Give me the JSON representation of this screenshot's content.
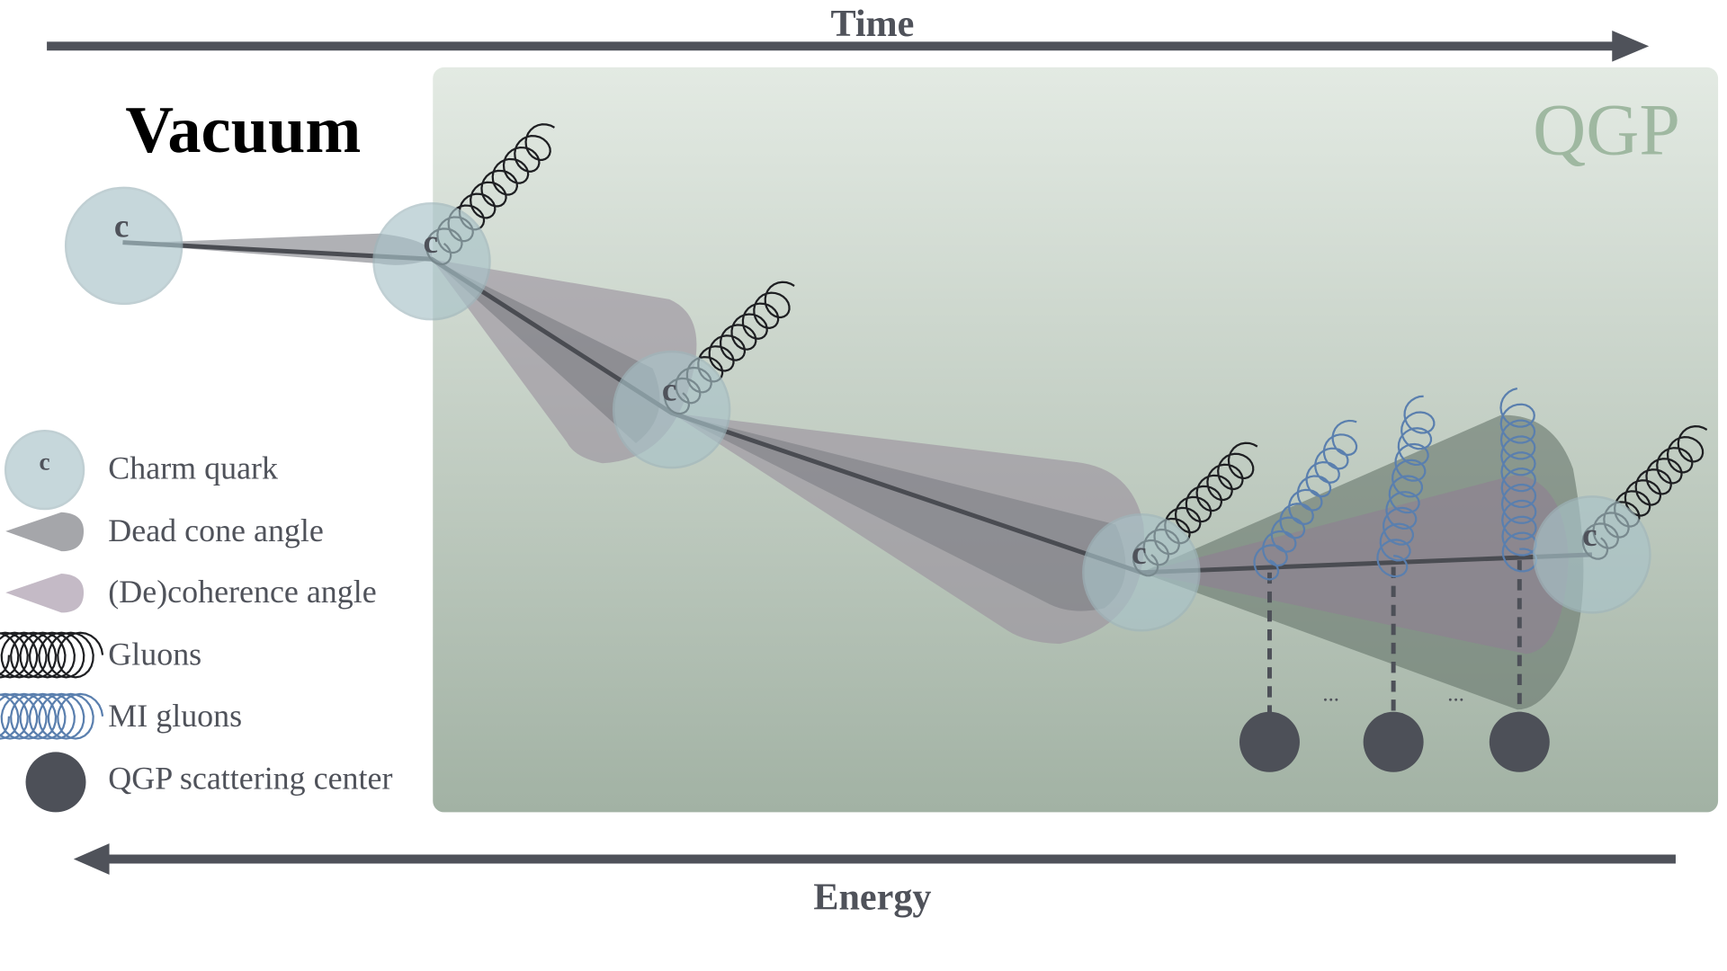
{
  "header": {
    "time": "Time",
    "energy": "Energy"
  },
  "regions": {
    "vacuum": "Vacuum",
    "qgp": "QGP"
  },
  "quarks": [
    "c",
    "c",
    "c",
    "c",
    "c"
  ],
  "ellipses": [
    "...",
    "..."
  ],
  "legend": [
    {
      "label": "Charm quark",
      "symbol": "c"
    },
    {
      "label": "Dead cone angle"
    },
    {
      "label": "(De)coherence angle"
    },
    {
      "label": "Gluons"
    },
    {
      "label": "MI gluons"
    },
    {
      "label": "QGP scattering center"
    }
  ]
}
